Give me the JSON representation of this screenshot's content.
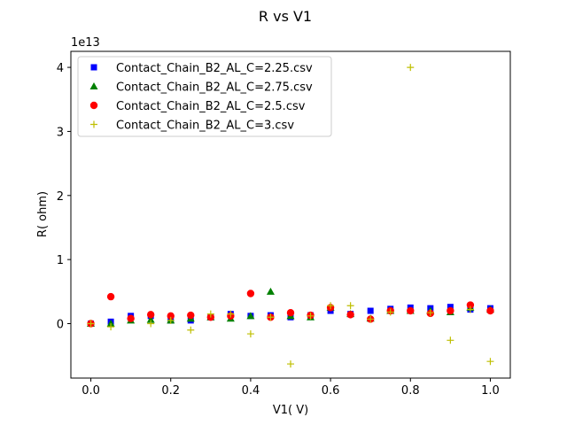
{
  "chart_data": {
    "type": "scatter",
    "title": "R vs V1",
    "xlabel": "V1( V)",
    "ylabel": "R( ohm)",
    "y_scale_label": "1e13",
    "xlim": [
      -0.05,
      1.05
    ],
    "ylim": [
      -0.85,
      4.25
    ],
    "y_multiplier": 10000000000000.0,
    "x_ticks": [
      0.0,
      0.2,
      0.4,
      0.6,
      0.8,
      1.0
    ],
    "x_tick_labels": [
      "0.0",
      "0.2",
      "0.4",
      "0.6",
      "0.8",
      "1.0"
    ],
    "y_ticks": [
      0,
      1,
      2,
      3,
      4
    ],
    "y_tick_labels": [
      "0",
      "1",
      "2",
      "3",
      "4"
    ],
    "grid": false,
    "legend": "top-left",
    "series": [
      {
        "name": "Contact_Chain_B2_AL_C=2.25.csv",
        "marker": "square",
        "color": "#0000ff",
        "points": [
          [
            0.0,
            0.0
          ],
          [
            0.05,
            0.03
          ],
          [
            0.1,
            0.12
          ],
          [
            0.15,
            0.12
          ],
          [
            0.2,
            0.05
          ],
          [
            0.25,
            0.05
          ],
          [
            0.3,
            0.1
          ],
          [
            0.35,
            0.15
          ],
          [
            0.4,
            0.12
          ],
          [
            0.45,
            0.13
          ],
          [
            0.5,
            0.1
          ],
          [
            0.55,
            0.13
          ],
          [
            0.6,
            0.2
          ],
          [
            0.65,
            0.15
          ],
          [
            0.7,
            0.2
          ],
          [
            0.75,
            0.23
          ],
          [
            0.8,
            0.25
          ],
          [
            0.85,
            0.24
          ],
          [
            0.9,
            0.26
          ],
          [
            0.95,
            0.22
          ],
          [
            1.0,
            0.24
          ]
        ]
      },
      {
        "name": "Contact_Chain_B2_AL_C=2.75.csv",
        "marker": "triangle",
        "color": "#008000",
        "points": [
          [
            0.0,
            0.0
          ],
          [
            0.05,
            0.0
          ],
          [
            0.1,
            0.05
          ],
          [
            0.15,
            0.06
          ],
          [
            0.2,
            0.05
          ],
          [
            0.25,
            0.08
          ],
          [
            0.3,
            0.1
          ],
          [
            0.35,
            0.08
          ],
          [
            0.4,
            0.12
          ],
          [
            0.45,
            0.5
          ],
          [
            0.5,
            0.12
          ],
          [
            0.55,
            0.1
          ],
          [
            0.6,
            0.25
          ],
          [
            0.65,
            0.15
          ],
          [
            0.7,
            0.08
          ],
          [
            0.75,
            0.2
          ],
          [
            0.8,
            0.2
          ],
          [
            0.85,
            0.2
          ],
          [
            0.9,
            0.18
          ],
          [
            0.95,
            0.25
          ],
          [
            1.0,
            0.22
          ]
        ]
      },
      {
        "name": "Contact_Chain_B2_AL_C=2.5.csv",
        "marker": "circle",
        "color": "#ff0000",
        "points": [
          [
            0.0,
            0.0
          ],
          [
            0.05,
            0.42
          ],
          [
            0.1,
            0.08
          ],
          [
            0.15,
            0.14
          ],
          [
            0.2,
            0.12
          ],
          [
            0.25,
            0.13
          ],
          [
            0.3,
            0.1
          ],
          [
            0.35,
            0.12
          ],
          [
            0.4,
            0.47
          ],
          [
            0.45,
            0.1
          ],
          [
            0.5,
            0.17
          ],
          [
            0.55,
            0.13
          ],
          [
            0.6,
            0.25
          ],
          [
            0.65,
            0.14
          ],
          [
            0.7,
            0.07
          ],
          [
            0.75,
            0.2
          ],
          [
            0.8,
            0.2
          ],
          [
            0.85,
            0.16
          ],
          [
            0.9,
            0.2
          ],
          [
            0.95,
            0.29
          ],
          [
            1.0,
            0.2
          ]
        ]
      },
      {
        "name": "Contact_Chain_B2_AL_C=3.csv",
        "marker": "plus",
        "color": "#bfbf00",
        "points": [
          [
            0.0,
            0.0
          ],
          [
            0.05,
            -0.05
          ],
          [
            0.15,
            0.0
          ],
          [
            0.2,
            0.05
          ],
          [
            0.25,
            -0.1
          ],
          [
            0.3,
            0.15
          ],
          [
            0.35,
            0.15
          ],
          [
            0.4,
            -0.16
          ],
          [
            0.45,
            0.1
          ],
          [
            0.5,
            -0.63
          ],
          [
            0.55,
            0.12
          ],
          [
            0.6,
            0.28
          ],
          [
            0.65,
            0.28
          ],
          [
            0.7,
            0.07
          ],
          [
            0.75,
            0.18
          ],
          [
            0.8,
            4.0
          ],
          [
            0.85,
            0.17
          ],
          [
            0.9,
            -0.26
          ],
          [
            0.95,
            0.22
          ],
          [
            1.0,
            -0.59
          ]
        ]
      }
    ]
  }
}
